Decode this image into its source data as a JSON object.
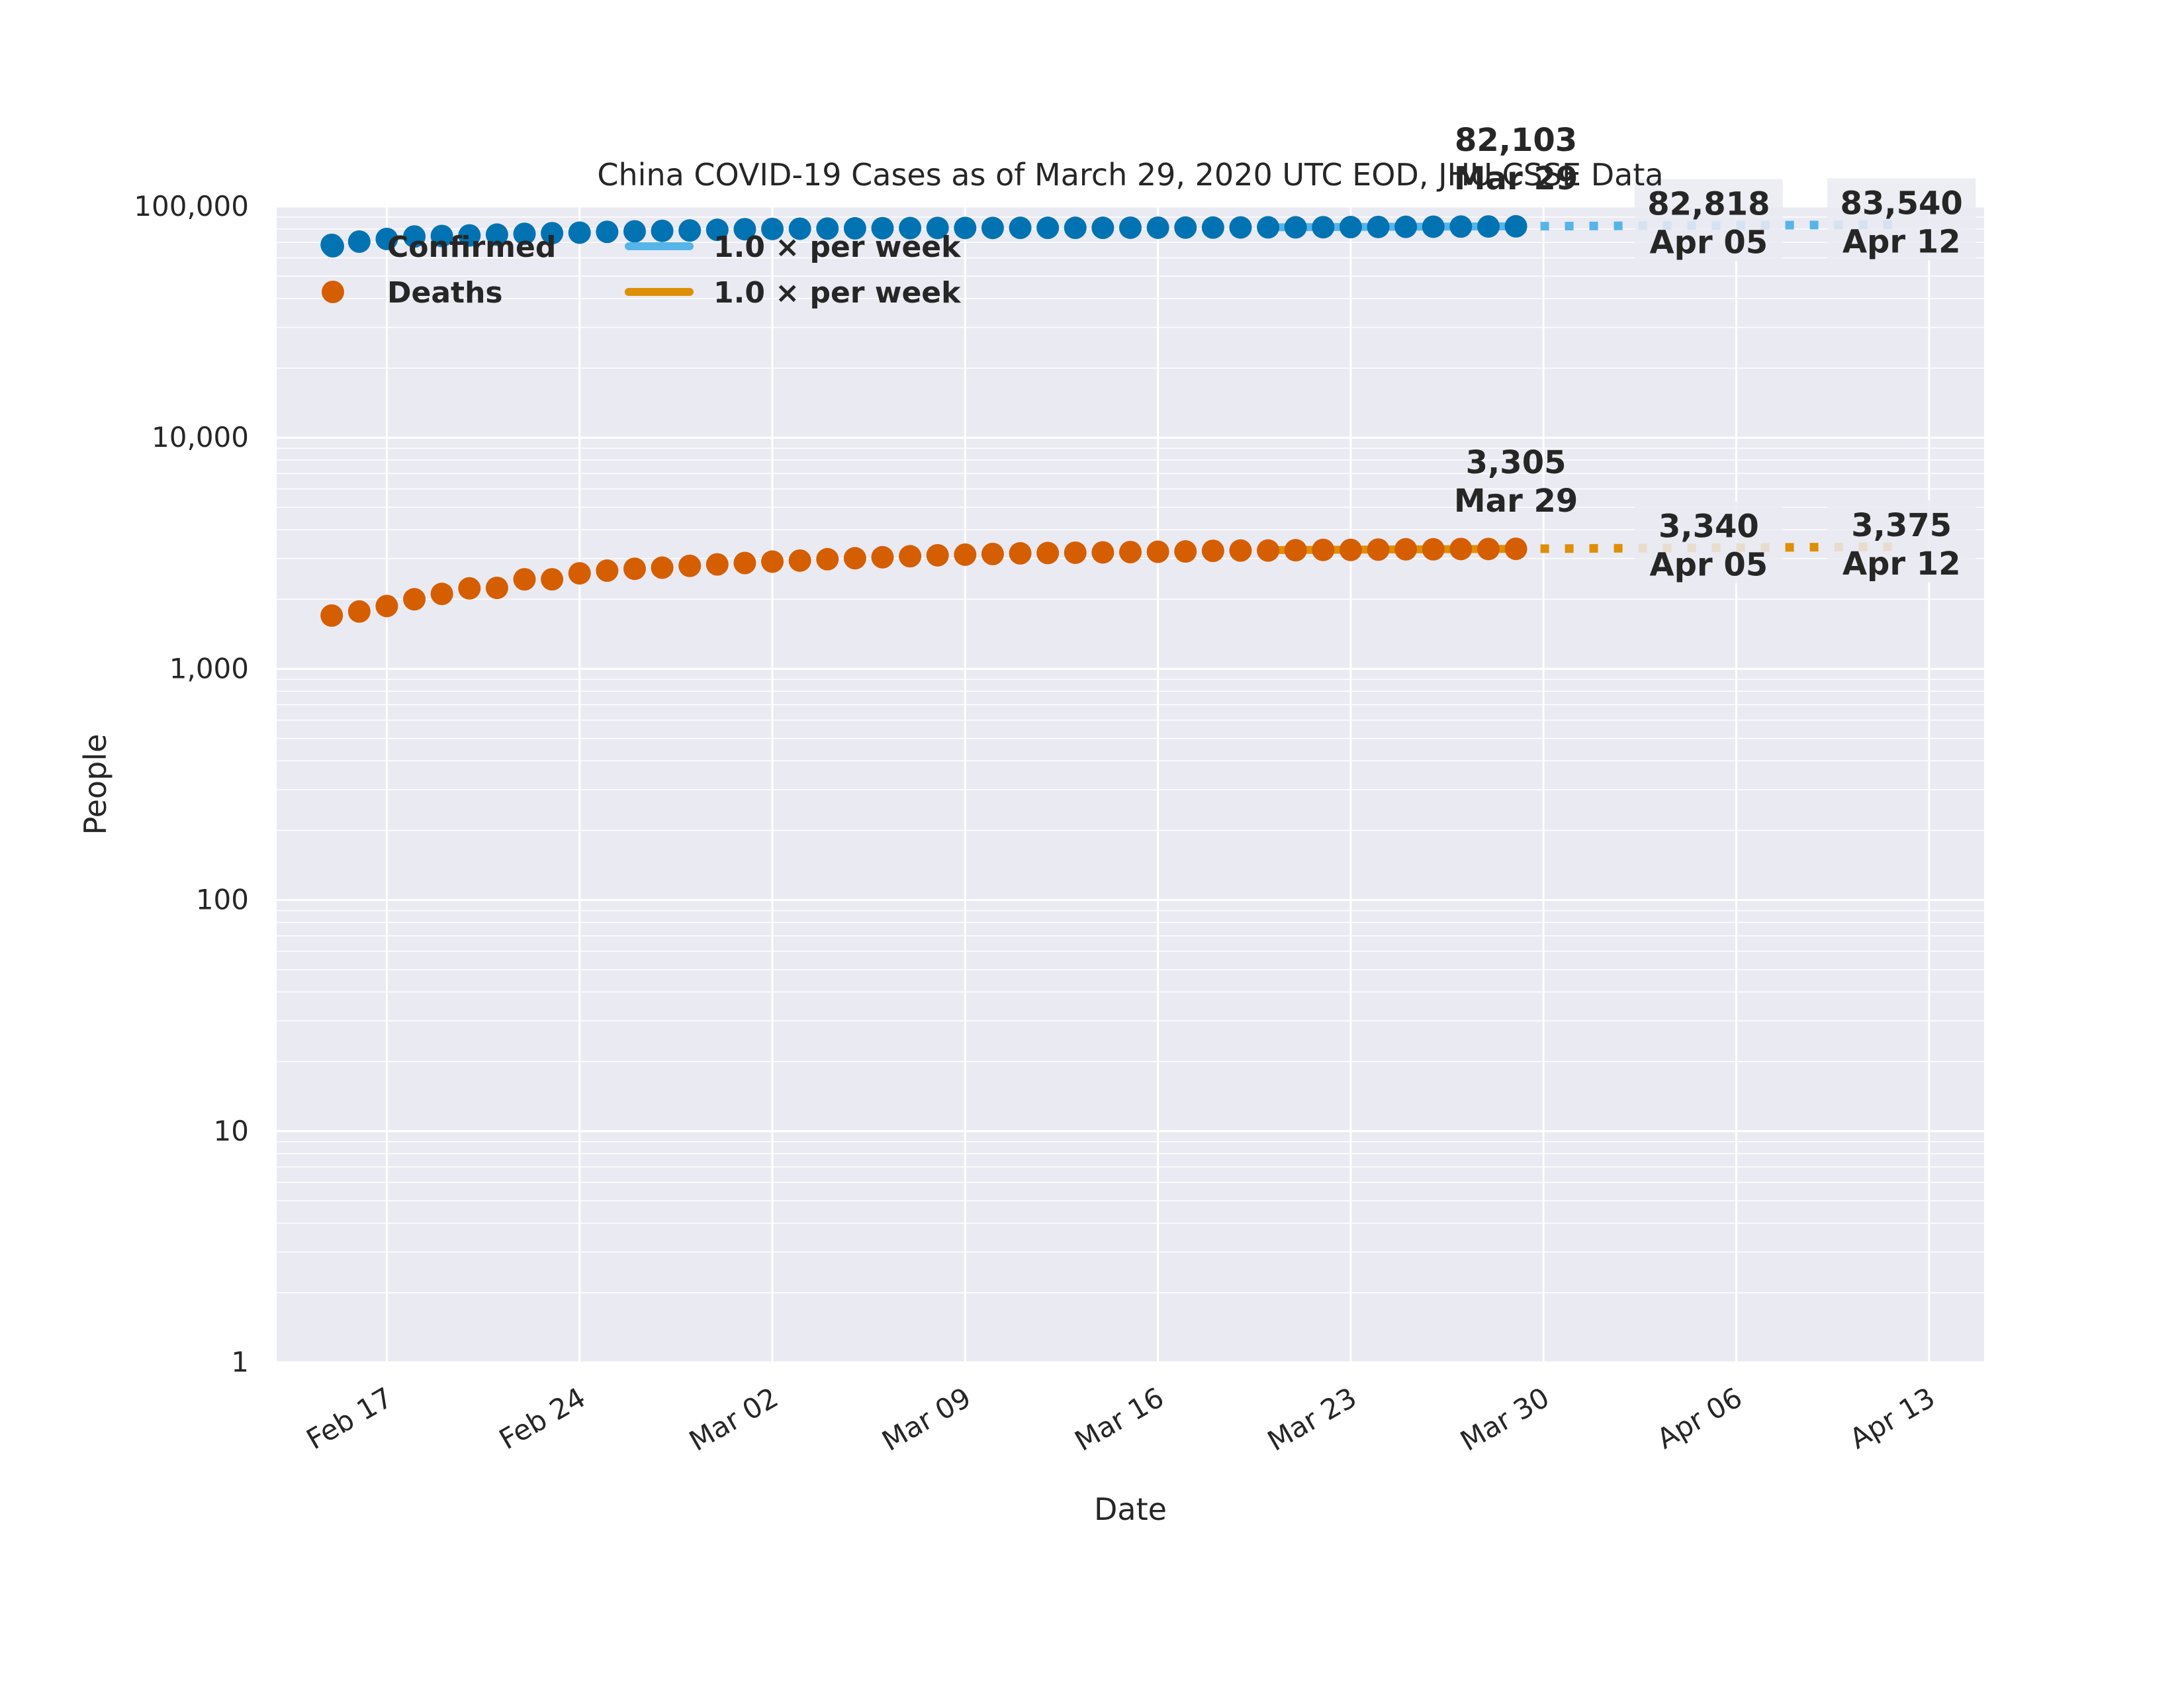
{
  "chart_data": {
    "type": "scatter",
    "title": "China COVID-19 Cases as of March 29, 2020 UTC EOD, JHU CSSE Data",
    "xlabel": "Date",
    "ylabel": "People",
    "yscale": "log",
    "ylim": [
      1,
      100000
    ],
    "xlim": [
      "2020-02-13",
      "2020-04-15"
    ],
    "xticks": [
      "Feb 17",
      "Feb 24",
      "Mar 02",
      "Mar 09",
      "Mar 16",
      "Mar 23",
      "Mar 30",
      "Apr 06",
      "Apr 13"
    ],
    "xtick_dates": [
      "2020-02-17",
      "2020-02-24",
      "2020-03-02",
      "2020-03-09",
      "2020-03-16",
      "2020-03-23",
      "2020-03-30",
      "2020-04-06",
      "2020-04-13"
    ],
    "yticks": [
      "1",
      "10",
      "100",
      "1,000",
      "10,000",
      "100,000"
    ],
    "ytick_values": [
      1,
      10,
      100,
      1000,
      10000,
      100000
    ],
    "grid": true,
    "background": "#eaeaf2",
    "legend_placement": "top-left",
    "dates": [
      "2020-02-15",
      "2020-02-16",
      "2020-02-17",
      "2020-02-18",
      "2020-02-19",
      "2020-02-20",
      "2020-02-21",
      "2020-02-22",
      "2020-02-23",
      "2020-02-24",
      "2020-02-25",
      "2020-02-26",
      "2020-02-27",
      "2020-02-28",
      "2020-02-29",
      "2020-03-01",
      "2020-03-02",
      "2020-03-03",
      "2020-03-04",
      "2020-03-05",
      "2020-03-06",
      "2020-03-07",
      "2020-03-08",
      "2020-03-09",
      "2020-03-10",
      "2020-03-11",
      "2020-03-12",
      "2020-03-13",
      "2020-03-14",
      "2020-03-15",
      "2020-03-16",
      "2020-03-17",
      "2020-03-18",
      "2020-03-19",
      "2020-03-20",
      "2020-03-21",
      "2020-03-22",
      "2020-03-23",
      "2020-03-24",
      "2020-03-25",
      "2020-03-26",
      "2020-03-27",
      "2020-03-28",
      "2020-03-29"
    ],
    "series": [
      {
        "name": "Confirmed",
        "color": "#0173b2",
        "values": [
          68300,
          70500,
          72400,
          74200,
          74600,
          75000,
          75600,
          76200,
          76700,
          77100,
          77700,
          78100,
          78500,
          78800,
          79300,
          79800,
          80000,
          80200,
          80300,
          80500,
          80600,
          80700,
          80800,
          80800,
          80800,
          80900,
          80900,
          80900,
          80900,
          81000,
          81000,
          81100,
          81100,
          81200,
          81300,
          81300,
          81400,
          81500,
          81600,
          81700,
          81800,
          81900,
          82000,
          82103
        ]
      },
      {
        "name": "Deaths",
        "color": "#d55e00",
        "values": [
          1700,
          1770,
          1870,
          2000,
          2110,
          2230,
          2240,
          2440,
          2440,
          2590,
          2660,
          2710,
          2740,
          2790,
          2830,
          2870,
          2910,
          2940,
          2980,
          3010,
          3040,
          3070,
          3100,
          3120,
          3140,
          3160,
          3170,
          3180,
          3190,
          3200,
          3210,
          3220,
          3240,
          3250,
          3250,
          3260,
          3270,
          3270,
          3280,
          3290,
          3290,
          3300,
          3300,
          3305
        ]
      }
    ],
    "fits": [
      {
        "name": "1.0 × per week",
        "color": "#56b4e9",
        "fit_dates": [
          "2020-03-20",
          "2020-03-29"
        ],
        "fit_values": [
          81300,
          82103
        ],
        "projection_dates": [
          "2020-03-29",
          "2020-04-12"
        ],
        "projection_values": [
          82103,
          83540
        ]
      },
      {
        "name": "1.0 × per week",
        "color": "#de8f05",
        "fit_dates": [
          "2020-03-20",
          "2020-03-29"
        ],
        "fit_values": [
          3265,
          3305
        ],
        "projection_dates": [
          "2020-03-29",
          "2020-04-12"
        ],
        "projection_values": [
          3305,
          3375
        ]
      }
    ],
    "annotations": [
      {
        "value": "82,103",
        "date_label": "Mar 29",
        "date": "2020-03-29",
        "y": 82103,
        "color": "#262626",
        "box": false
      },
      {
        "value": "82,818",
        "date_label": "Apr 05",
        "date": "2020-04-05",
        "y": 82818,
        "color": "#262626",
        "box": true
      },
      {
        "value": "83,540",
        "date_label": "Apr 12",
        "date": "2020-04-12",
        "y": 83540,
        "color": "#262626",
        "box": true
      },
      {
        "value": "3,305",
        "date_label": "Mar 29",
        "date": "2020-03-29",
        "y": 3305,
        "color": "#262626",
        "box": false
      },
      {
        "value": "3,340",
        "date_label": "Apr 05",
        "date": "2020-04-05",
        "y": 3340,
        "color": "#262626",
        "box": true
      },
      {
        "value": "3,375",
        "date_label": "Apr 12",
        "date": "2020-04-12",
        "y": 3375,
        "color": "#262626",
        "box": true
      }
    ]
  }
}
